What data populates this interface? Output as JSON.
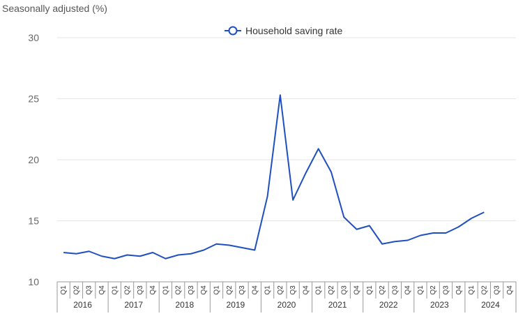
{
  "chart_data": {
    "type": "line",
    "ylabel": "Seasonally adjusted (%)",
    "ylim": [
      10,
      30
    ],
    "yticks": [
      "10",
      "15",
      "20",
      "25",
      "30"
    ],
    "grid": true,
    "legend_position": "top-center",
    "years": [
      "2016",
      "2017",
      "2018",
      "2019",
      "2020",
      "2021",
      "2022",
      "2023",
      "2024"
    ],
    "quarters": [
      "Q1",
      "Q2",
      "Q3",
      "Q4"
    ],
    "series": [
      {
        "name": "Household saving rate",
        "color": "#1f4fbf",
        "values": [
          12.4,
          12.3,
          12.5,
          12.1,
          11.9,
          12.2,
          12.1,
          12.4,
          11.9,
          12.2,
          12.3,
          12.6,
          13.1,
          13.0,
          12.8,
          12.6,
          17.0,
          25.3,
          16.7,
          18.9,
          20.9,
          19.0,
          15.3,
          14.3,
          14.6,
          13.1,
          13.3,
          13.4,
          13.8,
          14.0,
          14.0,
          14.5,
          15.2,
          15.7,
          null,
          null
        ]
      }
    ]
  }
}
